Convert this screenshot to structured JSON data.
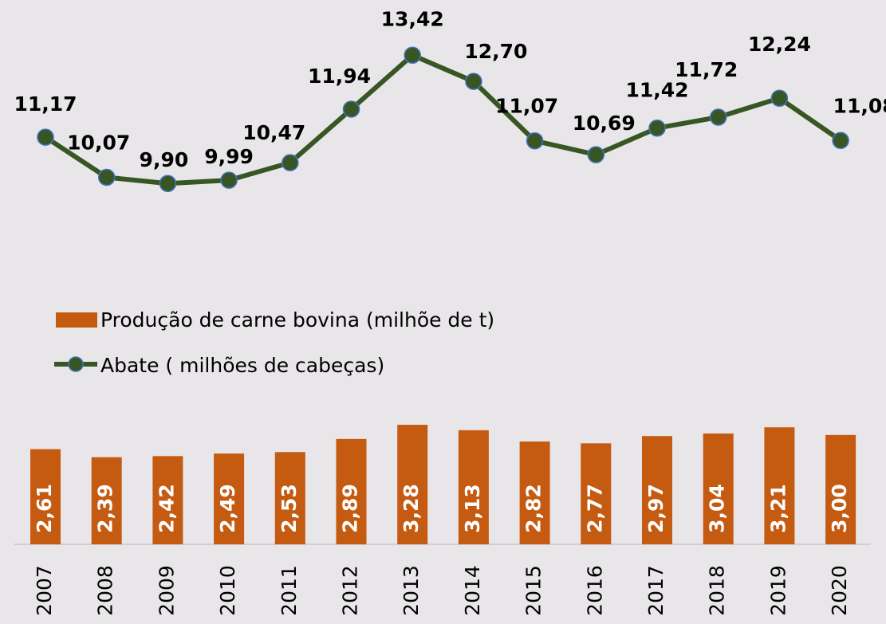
{
  "chart_data": {
    "type": "bar_line",
    "categories": [
      "2007",
      "2008",
      "2009",
      "2010",
      "2011",
      "2012",
      "2013",
      "2014",
      "2015",
      "2016",
      "2017",
      "2018",
      "2019",
      "2020"
    ],
    "series": [
      {
        "name": "Produção de carne bovina (milhõe de t)",
        "type": "bar",
        "color": "#c55a11",
        "values": [
          2.61,
          2.39,
          2.42,
          2.49,
          2.53,
          2.89,
          3.28,
          3.13,
          2.82,
          2.77,
          2.97,
          3.04,
          3.21,
          3.0
        ],
        "value_labels": [
          "2,61",
          "2,39",
          "2,42",
          "2,49",
          "2,53",
          "2,89",
          "3,28",
          "3,13",
          "2,82",
          "2,77",
          "2,97",
          "3,04",
          "3,21",
          "3,00"
        ]
      },
      {
        "name": "Abate ( milhões de cabeças)",
        "type": "line",
        "color": "#375623",
        "marker_edge": "#4472c4",
        "values": [
          11.17,
          10.07,
          9.9,
          9.99,
          10.47,
          11.94,
          13.42,
          12.7,
          11.07,
          10.69,
          11.42,
          11.72,
          12.24,
          11.08
        ],
        "value_labels": [
          "11,17",
          "10,07",
          "9,90",
          "9,99",
          "10,47",
          "11,94",
          "13,42",
          "12,70",
          "11,07",
          "10,69",
          "11,42",
          "11,72",
          "12,24",
          "11,08"
        ]
      }
    ],
    "ylim": [
      0,
      15
    ]
  }
}
